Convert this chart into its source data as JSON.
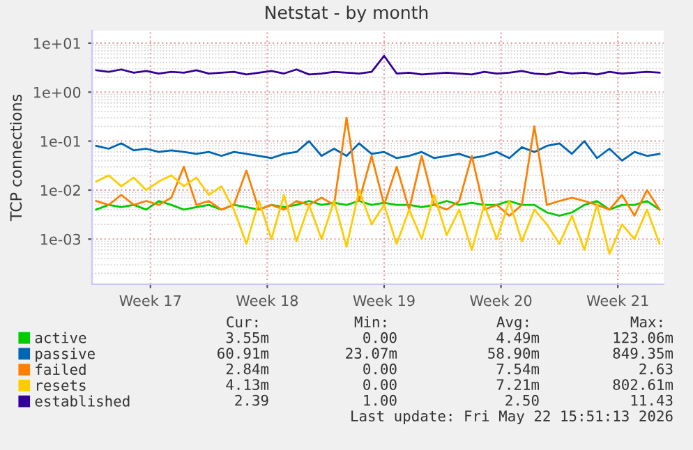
{
  "chart_data": {
    "type": "line",
    "title": "Netstat - by month",
    "ylabel": "TCP connections",
    "x": [
      "2026-04-20T06:00",
      "2026-04-21T00:00",
      "2026-04-21T18:00",
      "2026-04-22T12:00",
      "2026-04-23T06:00",
      "2026-04-24T00:00",
      "2026-04-24T18:00",
      "2026-04-25T12:00",
      "2026-04-26T06:00",
      "2026-04-27T00:00",
      "2026-04-27T18:00",
      "2026-04-28T12:00",
      "2026-04-29T06:00",
      "2026-04-30T00:00",
      "2026-04-30T18:00",
      "2026-05-01T12:00",
      "2026-05-02T06:00",
      "2026-05-03T00:00",
      "2026-05-03T18:00",
      "2026-05-04T12:00",
      "2026-05-05T06:00",
      "2026-05-06T00:00",
      "2026-05-06T18:00",
      "2026-05-07T12:00",
      "2026-05-08T06:00",
      "2026-05-09T00:00",
      "2026-05-09T18:00",
      "2026-05-10T12:00",
      "2026-05-11T06:00",
      "2026-05-12T00:00",
      "2026-05-12T18:00",
      "2026-05-13T12:00",
      "2026-05-14T06:00",
      "2026-05-15T00:00",
      "2026-05-15T18:00",
      "2026-05-16T12:00",
      "2026-05-17T06:00",
      "2026-05-18T00:00",
      "2026-05-18T18:00",
      "2026-05-19T12:00",
      "2026-05-20T06:00",
      "2026-05-21T00:00",
      "2026-05-21T18:00",
      "2026-05-22T12:00",
      "2026-05-23T06:00",
      "2026-05-24T00:00"
    ],
    "series": [
      {
        "name": "active",
        "color": "#00cc00",
        "values": [
          0.004,
          0.005,
          0.0045,
          0.005,
          0.004,
          0.006,
          0.005,
          0.004,
          0.0045,
          0.005,
          0.004,
          0.005,
          0.0045,
          0.004,
          0.005,
          0.0045,
          0.005,
          0.006,
          0.005,
          0.0055,
          0.005,
          0.006,
          0.005,
          0.0055,
          0.005,
          0.005,
          0.0045,
          0.005,
          0.006,
          0.005,
          0.0055,
          0.005,
          0.005,
          0.006,
          0.005,
          0.005,
          0.0035,
          0.003,
          0.0035,
          0.005,
          0.006,
          0.004,
          0.005,
          0.005,
          0.006,
          0.004
        ]
      },
      {
        "name": "passive",
        "color": "#0066b3",
        "values": [
          0.08,
          0.07,
          0.09,
          0.065,
          0.07,
          0.06,
          0.065,
          0.06,
          0.055,
          0.06,
          0.05,
          0.06,
          0.055,
          0.05,
          0.045,
          0.055,
          0.06,
          0.1,
          0.05,
          0.07,
          0.05,
          0.09,
          0.055,
          0.06,
          0.045,
          0.05,
          0.06,
          0.045,
          0.05,
          0.055,
          0.045,
          0.05,
          0.06,
          0.045,
          0.075,
          0.06,
          0.08,
          0.09,
          0.055,
          0.1,
          0.045,
          0.07,
          0.04,
          0.06,
          0.05,
          0.055
        ]
      },
      {
        "name": "failed",
        "color": "#ff8000",
        "values": [
          0.006,
          0.005,
          0.008,
          0.005,
          0.006,
          0.005,
          0.007,
          0.03,
          0.005,
          0.006,
          0.004,
          0.005,
          0.025,
          0.004,
          0.005,
          0.004,
          0.006,
          0.005,
          0.007,
          0.005,
          0.3,
          0.006,
          0.05,
          0.005,
          0.03,
          0.004,
          0.05,
          0.005,
          0.004,
          0.006,
          0.05,
          0.004,
          0.005,
          0.003,
          0.005,
          0.2,
          0.005,
          0.006,
          0.007,
          0.006,
          0.005,
          0.004,
          0.008,
          0.003,
          0.01,
          0.004
        ]
      },
      {
        "name": "resets",
        "color": "#ffcc00",
        "values": [
          0.015,
          0.02,
          0.012,
          0.018,
          0.01,
          0.015,
          0.02,
          0.012,
          0.018,
          0.008,
          0.012,
          0.004,
          0.0008,
          0.006,
          0.001,
          0.008,
          0.0009,
          0.005,
          0.001,
          0.006,
          0.0007,
          0.01,
          0.002,
          0.005,
          0.0008,
          0.004,
          0.001,
          0.008,
          0.0012,
          0.004,
          0.0006,
          0.005,
          0.001,
          0.006,
          0.0009,
          0.004,
          0.002,
          0.0008,
          0.003,
          0.0006,
          0.005,
          0.0005,
          0.002,
          0.001,
          0.004,
          0.0008
        ]
      },
      {
        "name": "established",
        "color": "#330099",
        "values": [
          2.8,
          2.6,
          2.9,
          2.5,
          2.7,
          2.4,
          2.6,
          2.5,
          2.8,
          2.4,
          2.5,
          2.6,
          2.3,
          2.5,
          2.7,
          2.4,
          2.9,
          2.3,
          2.4,
          2.6,
          2.5,
          2.4,
          2.6,
          5.5,
          2.4,
          2.5,
          2.3,
          2.4,
          2.5,
          2.4,
          2.3,
          2.6,
          2.4,
          2.5,
          2.7,
          2.4,
          2.3,
          2.6,
          2.4,
          2.5,
          2.3,
          2.6,
          2.4,
          2.5,
          2.6,
          2.5
        ]
      }
    ],
    "log": "y",
    "ylim": [
      0.00012,
      18
    ],
    "yticks": [
      {
        "value": 0.001,
        "label": "1e-03"
      },
      {
        "value": 0.01,
        "label": "1e-02"
      },
      {
        "value": 0.1,
        "label": "1e-01"
      },
      {
        "value": 1,
        "label": "1e+00"
      },
      {
        "value": 10,
        "label": "1e+01"
      }
    ],
    "xlim": [
      "2026-04-20T00:00",
      "2026-05-24T06:00"
    ],
    "xticks": [
      {
        "value": "2026-04-23T12:00",
        "label": "Week 17"
      },
      {
        "value": "2026-04-30T12:00",
        "label": "Week 18"
      },
      {
        "value": "2026-05-07T12:00",
        "label": "Week 19"
      },
      {
        "value": "2026-05-14T12:00",
        "label": "Week 20"
      },
      {
        "value": "2026-05-21T12:00",
        "label": "Week 21"
      }
    ],
    "grid": true,
    "legend": "bottom",
    "marker": "none",
    "line_style": "solid",
    "annotations": [
      "Cur:",
      "Min:",
      "Avg:",
      "Max:",
      "3.55m",
      "0.00",
      "4.49m",
      "123.06m",
      "60.91m",
      "23.07m",
      "58.90m",
      "849.35m",
      "2.84m",
      "0.00",
      "7.54m",
      "2.63",
      "4.13m",
      "0.00",
      "7.21m",
      "802.61m",
      "2.39",
      "1.00",
      "2.50",
      "11.43",
      "Last update: Fri May 22 15:51:13 2026"
    ]
  }
}
